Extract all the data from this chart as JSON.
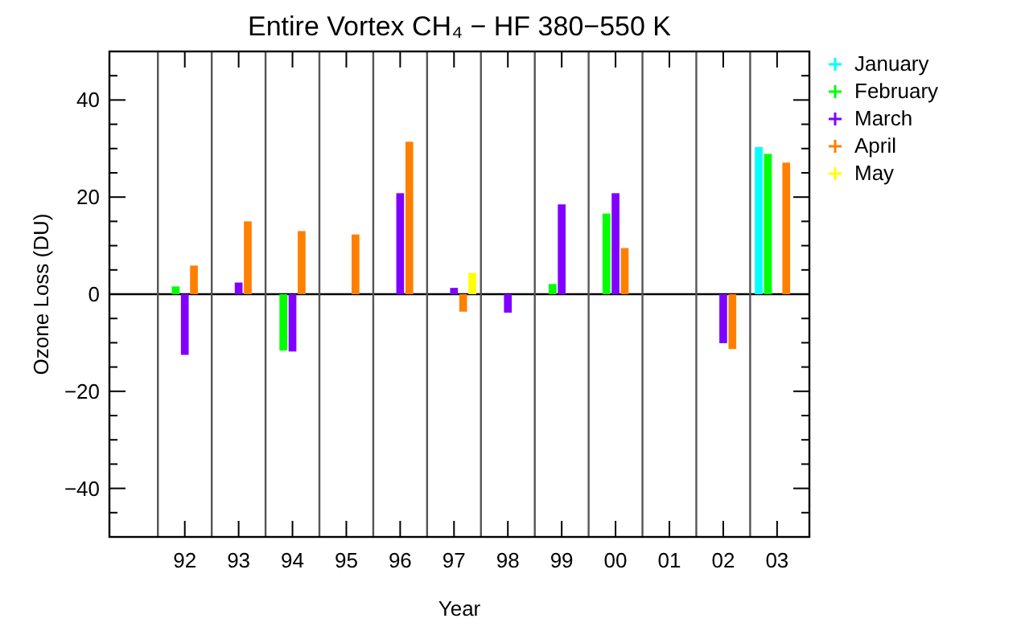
{
  "chart_data": {
    "type": "bar",
    "title": "Entire Vortex CH₄ − HF 380−550 K",
    "xlabel": "Year",
    "ylabel": "Ozone Loss (DU)",
    "x": [
      1992,
      1993,
      1994,
      1995,
      1996,
      1997,
      1998,
      1999,
      2000,
      2002,
      2003
    ],
    "series": [
      {
        "name": "January",
        "color": "#00ffff",
        "values": [
          null,
          null,
          null,
          null,
          null,
          null,
          null,
          null,
          null,
          null,
          30.3
        ]
      },
      {
        "name": "February",
        "color": "#00ff00",
        "values": [
          1.6,
          null,
          -11.6,
          null,
          null,
          null,
          null,
          2.1,
          16.6,
          null,
          28.9
        ]
      },
      {
        "name": "March",
        "color": "#8000ff",
        "values": [
          -12.5,
          2.4,
          -11.8,
          null,
          20.8,
          1.3,
          -3.8,
          18.5,
          20.8,
          -10.1,
          null
        ]
      },
      {
        "name": "April",
        "color": "#ff8000",
        "values": [
          5.9,
          15,
          13,
          12.3,
          31.4,
          -3.6,
          null,
          null,
          9.5,
          -11.3,
          27.1
        ]
      },
      {
        "name": "May",
        "color": "#ffff00",
        "values": [
          null,
          null,
          null,
          null,
          null,
          4.4,
          null,
          null,
          null,
          null,
          null
        ]
      }
    ],
    "xlim": [
      1990.6,
      2003.6
    ],
    "xticks": [
      {
        "value": 1992,
        "label": "92"
      },
      {
        "value": 1993,
        "label": "93"
      },
      {
        "value": 1994,
        "label": "94"
      },
      {
        "value": 1995,
        "label": "95"
      },
      {
        "value": 1996,
        "label": "96"
      },
      {
        "value": 1997,
        "label": "97"
      },
      {
        "value": 1998,
        "label": "98"
      },
      {
        "value": 1999,
        "label": "99"
      },
      {
        "value": 2000,
        "label": "00"
      },
      {
        "value": 2001,
        "label": "01"
      },
      {
        "value": 2002,
        "label": "02"
      },
      {
        "value": 2003,
        "label": "03"
      }
    ],
    "ylim": [
      -50,
      50
    ],
    "yticks": [
      {
        "value": -45,
        "label": null
      },
      {
        "value": -40,
        "label": "−40"
      },
      {
        "value": -35,
        "label": null
      },
      {
        "value": -30,
        "label": null
      },
      {
        "value": -25,
        "label": null
      },
      {
        "value": -20,
        "label": "−20"
      },
      {
        "value": -15,
        "label": null
      },
      {
        "value": -10,
        "label": null
      },
      {
        "value": -5,
        "label": null
      },
      0,
      {
        "value": 5,
        "label": null
      },
      {
        "value": 10,
        "label": null
      },
      {
        "value": 15,
        "label": null
      },
      20,
      {
        "value": 25,
        "label": null
      },
      {
        "value": 30,
        "label": null
      },
      {
        "value": 35,
        "label": null
      },
      40,
      {
        "value": 45,
        "label": null
      }
    ],
    "ref_lines": [
      {
        "axis": "y",
        "value": 0,
        "color": "#000000"
      },
      {
        "axis": "x",
        "value": 1991.5,
        "color": "#555555"
      },
      {
        "axis": "x",
        "value": 1992.5,
        "color": "#555555"
      },
      {
        "axis": "x",
        "value": 1993.5,
        "color": "#555555"
      },
      {
        "axis": "x",
        "value": 1994.5,
        "color": "#555555"
      },
      {
        "axis": "x",
        "value": 1995.5,
        "color": "#555555"
      },
      {
        "axis": "x",
        "value": 1996.5,
        "color": "#555555"
      },
      {
        "axis": "x",
        "value": 1997.5,
        "color": "#555555"
      },
      {
        "axis": "x",
        "value": 1998.5,
        "color": "#555555"
      },
      {
        "axis": "x",
        "value": 1999.5,
        "color": "#555555"
      },
      {
        "axis": "x",
        "value": 2000.5,
        "color": "#555555"
      },
      {
        "axis": "x",
        "value": 2001.5,
        "color": "#555555"
      },
      {
        "axis": "x",
        "value": 2002.5,
        "color": "#555555"
      }
    ],
    "legend": "top right"
  }
}
